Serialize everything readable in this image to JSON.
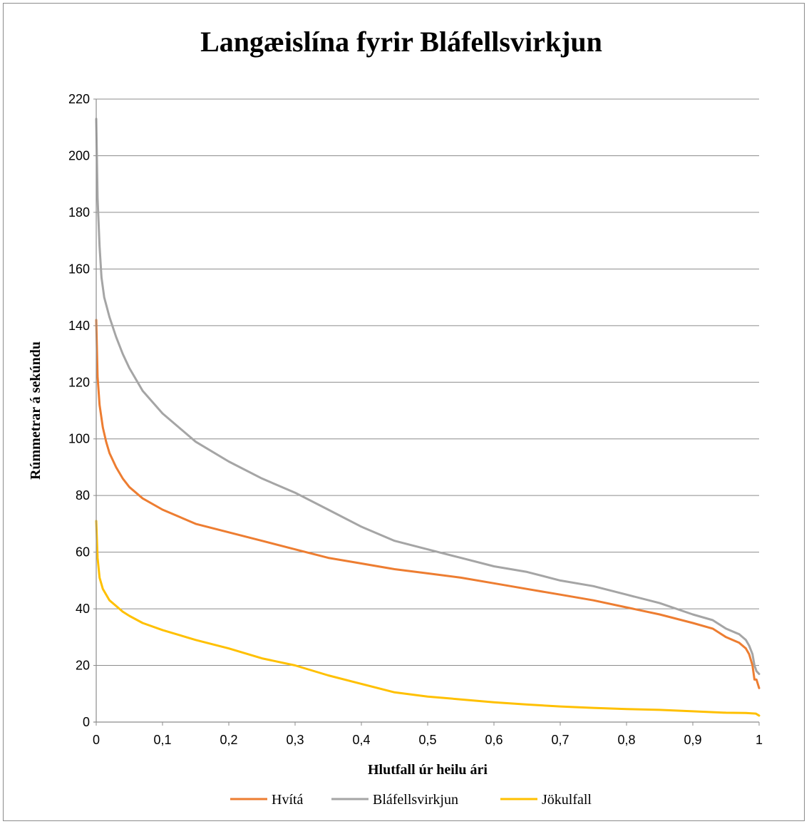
{
  "chart_data": {
    "type": "line",
    "title": "Langæislína fyrir Bláfellsvirkjun",
    "xlabel": "Hlutfall úr heilu ári",
    "ylabel": "Rúmmetrar á sekúndu",
    "xlim": [
      0,
      1
    ],
    "ylim": [
      0,
      220
    ],
    "x_ticks": [
      "0",
      "0,1",
      "0,2",
      "0,3",
      "0,4",
      "0,5",
      "0,6",
      "0,7",
      "0,8",
      "0,9",
      "1"
    ],
    "y_ticks": [
      "0",
      "20",
      "40",
      "60",
      "80",
      "100",
      "120",
      "140",
      "160",
      "180",
      "200",
      "220"
    ],
    "grid": "horizontal",
    "legend_position": "bottom",
    "series": [
      {
        "name": "Hvítá",
        "color": "#ED7D31",
        "x": [
          0,
          0.002,
          0.005,
          0.01,
          0.015,
          0.02,
          0.03,
          0.04,
          0.05,
          0.07,
          0.1,
          0.15,
          0.2,
          0.25,
          0.3,
          0.35,
          0.4,
          0.45,
          0.5,
          0.55,
          0.6,
          0.65,
          0.7,
          0.75,
          0.8,
          0.85,
          0.9,
          0.93,
          0.95,
          0.97,
          0.98,
          0.985,
          0.99,
          0.993,
          0.996,
          1.0
        ],
        "y": [
          142,
          122,
          112,
          104,
          99,
          95,
          90,
          86,
          83,
          79,
          75,
          70,
          67,
          64,
          61,
          58,
          56,
          54,
          52.5,
          51,
          49,
          47,
          45,
          43,
          40.5,
          38,
          35,
          33,
          30,
          28,
          26,
          24,
          20,
          15,
          15,
          12
        ]
      },
      {
        "name": "Bláfellsvirkjun",
        "color": "#A5A5A5",
        "x": [
          0,
          0.002,
          0.005,
          0.008,
          0.012,
          0.02,
          0.03,
          0.04,
          0.05,
          0.07,
          0.1,
          0.15,
          0.2,
          0.25,
          0.3,
          0.35,
          0.4,
          0.45,
          0.5,
          0.55,
          0.6,
          0.65,
          0.7,
          0.75,
          0.8,
          0.85,
          0.9,
          0.93,
          0.95,
          0.97,
          0.98,
          0.985,
          0.99,
          0.993,
          0.996,
          1.0
        ],
        "y": [
          213,
          185,
          168,
          157,
          150,
          143,
          136,
          130,
          125,
          117,
          109,
          99,
          92,
          86,
          81,
          75,
          69,
          64,
          61,
          58,
          55,
          53,
          50,
          48,
          45,
          42,
          38,
          36,
          33,
          31,
          29,
          27,
          24,
          20,
          18,
          17
        ]
      },
      {
        "name": "Jökulfall",
        "color": "#FFC000",
        "x": [
          0,
          0.002,
          0.005,
          0.01,
          0.02,
          0.03,
          0.04,
          0.05,
          0.07,
          0.1,
          0.15,
          0.2,
          0.25,
          0.3,
          0.35,
          0.4,
          0.45,
          0.5,
          0.55,
          0.6,
          0.65,
          0.7,
          0.75,
          0.8,
          0.85,
          0.9,
          0.95,
          0.98,
          0.995,
          1.0
        ],
        "y": [
          71,
          58,
          51,
          47,
          43,
          41,
          39,
          37.5,
          35,
          32.5,
          29,
          26,
          22.5,
          20,
          16.5,
          13.5,
          10.5,
          9,
          8,
          7,
          6.2,
          5.5,
          5,
          4.6,
          4.3,
          3.8,
          3.3,
          3.2,
          3,
          2.3
        ]
      }
    ]
  }
}
